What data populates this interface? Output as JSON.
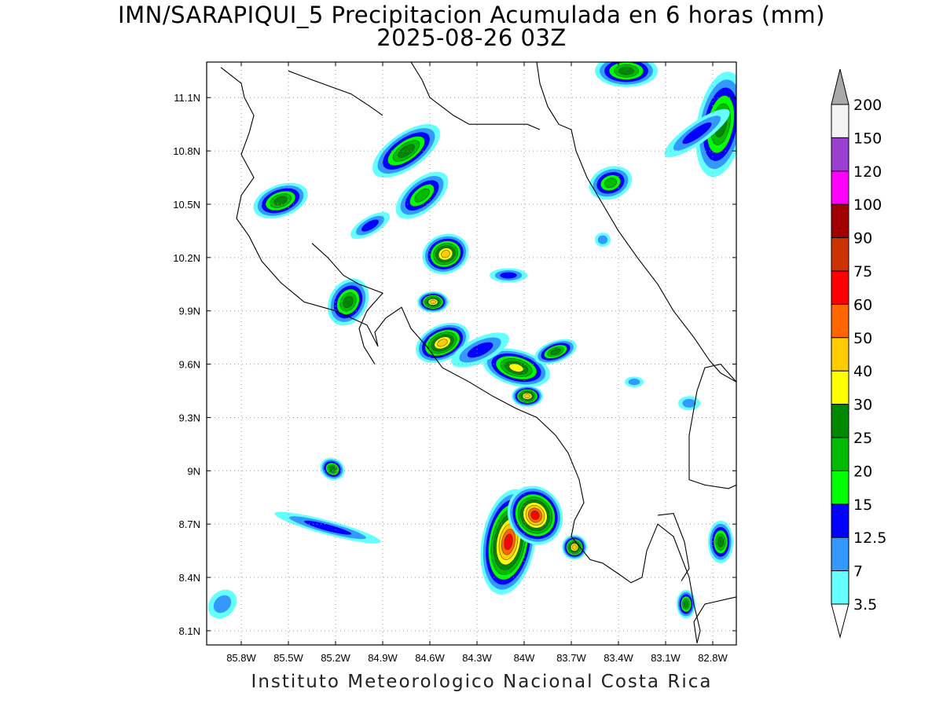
{
  "header": {
    "title_line1": "IMN/SARAPIQUI_5 Precipitacion Acumulada en 6 horas (mm)",
    "title_line2": "2025-08-26 03Z"
  },
  "footer": {
    "credit": "Instituto Meteorologico Nacional Costa Rica"
  },
  "map": {
    "lon_range": [
      -86.02,
      -82.65
    ],
    "lat_range": [
      8.02,
      11.3
    ],
    "lon_ticks": [
      {
        "value": -85.8,
        "label": "85.8W"
      },
      {
        "value": -85.5,
        "label": "85.5W"
      },
      {
        "value": -85.2,
        "label": "85.2W"
      },
      {
        "value": -84.9,
        "label": "84.9W"
      },
      {
        "value": -84.6,
        "label": "84.6W"
      },
      {
        "value": -84.3,
        "label": "84.3W"
      },
      {
        "value": -84.0,
        "label": "84W"
      },
      {
        "value": -83.7,
        "label": "83.7W"
      },
      {
        "value": -83.4,
        "label": "83.4W"
      },
      {
        "value": -83.1,
        "label": "83.1W"
      },
      {
        "value": -82.8,
        "label": "82.8W"
      }
    ],
    "lat_ticks": [
      {
        "value": 8.1,
        "label": "8.1N"
      },
      {
        "value": 8.4,
        "label": "8.4N"
      },
      {
        "value": 8.7,
        "label": "8.7N"
      },
      {
        "value": 9.0,
        "label": "9N"
      },
      {
        "value": 9.3,
        "label": "9.3N"
      },
      {
        "value": 9.6,
        "label": "9.6N"
      },
      {
        "value": 9.9,
        "label": "9.9N"
      },
      {
        "value": 10.2,
        "label": "10.2N"
      },
      {
        "value": 10.5,
        "label": "10.5N"
      },
      {
        "value": 10.8,
        "label": "10.8N"
      },
      {
        "value": 11.1,
        "label": "11.1N"
      }
    ],
    "grid": true,
    "coastlines": [
      [
        [
          -85.93,
          11.27
        ],
        [
          -85.8,
          11.18
        ],
        [
          -85.78,
          11.1
        ],
        [
          -85.72,
          11.0
        ],
        [
          -85.75,
          10.9
        ],
        [
          -85.8,
          10.78
        ],
        [
          -85.72,
          10.65
        ],
        [
          -85.8,
          10.55
        ],
        [
          -85.83,
          10.42
        ],
        [
          -85.75,
          10.32
        ],
        [
          -85.67,
          10.18
        ],
        [
          -85.55,
          10.06
        ],
        [
          -85.4,
          9.95
        ],
        [
          -85.2,
          9.9
        ],
        [
          -85.0,
          9.82
        ],
        [
          -84.93,
          9.7
        ],
        [
          -84.95,
          9.78
        ],
        [
          -84.88,
          9.86
        ],
        [
          -84.78,
          9.92
        ],
        [
          -84.72,
          9.8
        ],
        [
          -84.62,
          9.7
        ],
        [
          -84.52,
          9.58
        ],
        [
          -84.35,
          9.5
        ],
        [
          -84.2,
          9.42
        ],
        [
          -84.05,
          9.35
        ],
        [
          -83.92,
          9.3
        ],
        [
          -83.8,
          9.2
        ],
        [
          -83.72,
          9.1
        ],
        [
          -83.65,
          8.95
        ],
        [
          -83.62,
          8.82
        ],
        [
          -83.68,
          8.72
        ],
        [
          -83.7,
          8.63
        ],
        [
          -83.58,
          8.5
        ],
        [
          -83.5,
          8.48
        ],
        [
          -83.4,
          8.42
        ],
        [
          -83.32,
          8.37
        ],
        [
          -83.25,
          8.4
        ],
        [
          -83.22,
          8.55
        ],
        [
          -83.15,
          8.7
        ],
        [
          -83.05,
          8.63
        ],
        [
          -82.95,
          8.4
        ],
        [
          -82.92,
          8.25
        ],
        [
          -82.88,
          8.1
        ],
        [
          -82.9,
          8.03
        ]
      ],
      [
        [
          -82.9,
          8.03
        ],
        [
          -82.92,
          8.15
        ],
        [
          -82.85,
          8.25
        ],
        [
          -82.7,
          8.28
        ],
        [
          -82.65,
          8.29
        ]
      ],
      [
        [
          -84.72,
          11.3
        ],
        [
          -84.65,
          11.2
        ],
        [
          -84.6,
          11.1
        ],
        [
          -84.45,
          11.0
        ],
        [
          -84.35,
          10.95
        ],
        [
          -84.15,
          10.95
        ],
        [
          -83.98,
          10.95
        ],
        [
          -83.9,
          10.92
        ]
      ],
      [
        [
          -83.92,
          11.3
        ],
        [
          -83.9,
          11.18
        ],
        [
          -83.85,
          11.05
        ],
        [
          -83.78,
          10.95
        ],
        [
          -83.7,
          10.92
        ],
        [
          -83.67,
          10.8
        ],
        [
          -83.6,
          10.65
        ],
        [
          -83.5,
          10.5
        ],
        [
          -83.4,
          10.35
        ],
        [
          -83.28,
          10.2
        ],
        [
          -83.15,
          10.05
        ],
        [
          -83.05,
          9.9
        ],
        [
          -82.92,
          9.75
        ],
        [
          -82.82,
          9.62
        ],
        [
          -82.75,
          9.55
        ],
        [
          -82.65,
          9.5
        ]
      ],
      [
        [
          -82.65,
          9.5
        ],
        [
          -82.75,
          9.6
        ],
        [
          -82.85,
          9.58
        ],
        [
          -82.9,
          9.45
        ],
        [
          -82.95,
          9.2
        ],
        [
          -82.95,
          8.95
        ],
        [
          -82.85,
          8.92
        ],
        [
          -82.7,
          8.9
        ],
        [
          -82.65,
          8.92
        ]
      ],
      [
        [
          -85.35,
          10.28
        ],
        [
          -85.25,
          10.2
        ],
        [
          -85.15,
          10.1
        ],
        [
          -85.05,
          10.05
        ],
        [
          -84.9,
          10.0
        ],
        [
          -84.95,
          9.95
        ],
        [
          -85.0,
          9.9
        ],
        [
          -85.05,
          9.8
        ],
        [
          -85.02,
          9.7
        ],
        [
          -84.95,
          9.6
        ]
      ],
      [
        [
          -83.15,
          8.75
        ],
        [
          -83.05,
          8.76
        ],
        [
          -82.98,
          8.6
        ],
        [
          -82.95,
          8.45
        ],
        [
          -83.0,
          8.38
        ]
      ],
      [
        [
          -85.5,
          11.25
        ],
        [
          -85.35,
          11.2
        ],
        [
          -85.1,
          11.12
        ],
        [
          -84.98,
          11.05
        ],
        [
          -84.9,
          11.0
        ]
      ]
    ]
  },
  "colorbar": {
    "top_label": "200",
    "levels": [
      {
        "label": "200",
        "color": "#f4f4f4"
      },
      {
        "label": "150",
        "color": "#9a3fd0"
      },
      {
        "label": "120",
        "color": "#ff00ff"
      },
      {
        "label": "100",
        "color": "#a00000"
      },
      {
        "label": "90",
        "color": "#cc3300"
      },
      {
        "label": "75",
        "color": "#ff0000"
      },
      {
        "label": "60",
        "color": "#ff6600"
      },
      {
        "label": "50",
        "color": "#ffcc00"
      },
      {
        "label": "40",
        "color": "#ffff00"
      },
      {
        "label": "30",
        "color": "#008800"
      },
      {
        "label": "25",
        "color": "#00bb00"
      },
      {
        "label": "20",
        "color": "#00ff00"
      },
      {
        "label": "15",
        "color": "#0000ff"
      },
      {
        "label": "12.5",
        "color": "#3399ff"
      },
      {
        "label": "7",
        "color": "#66ffff"
      },
      {
        "label": "3.5",
        "color": "#ffffff"
      }
    ]
  },
  "precip_cells": [
    {
      "lon": -84.75,
      "lat": 10.8,
      "rx": 0.25,
      "ry": 0.1,
      "angle": -35,
      "max_level": 25
    },
    {
      "lon": -84.65,
      "lat": 10.55,
      "rx": 0.2,
      "ry": 0.09,
      "angle": -40,
      "max_level": 20
    },
    {
      "lon": -84.5,
      "lat": 10.22,
      "rx": 0.15,
      "ry": 0.11,
      "angle": -20,
      "max_level": 40
    },
    {
      "lon": -85.55,
      "lat": 10.52,
      "rx": 0.18,
      "ry": 0.09,
      "angle": -20,
      "max_level": 25
    },
    {
      "lon": -85.12,
      "lat": 9.95,
      "rx": 0.12,
      "ry": 0.14,
      "angle": 30,
      "max_level": 25
    },
    {
      "lon": -84.58,
      "lat": 9.95,
      "rx": 0.1,
      "ry": 0.06,
      "angle": 0,
      "max_level": 40
    },
    {
      "lon": -84.52,
      "lat": 9.72,
      "rx": 0.18,
      "ry": 0.1,
      "angle": -25,
      "max_level": 40
    },
    {
      "lon": -84.05,
      "lat": 9.58,
      "rx": 0.22,
      "ry": 0.1,
      "angle": 15,
      "max_level": 30
    },
    {
      "lon": -83.98,
      "lat": 9.42,
      "rx": 0.1,
      "ry": 0.06,
      "angle": 0,
      "max_level": 40
    },
    {
      "lon": -83.8,
      "lat": 9.67,
      "rx": 0.14,
      "ry": 0.06,
      "angle": -20,
      "max_level": 25
    },
    {
      "lon": -85.22,
      "lat": 9.01,
      "rx": 0.08,
      "ry": 0.06,
      "angle": 30,
      "max_level": 25
    },
    {
      "lon": -84.1,
      "lat": 8.6,
      "rx": 0.17,
      "ry": 0.3,
      "angle": 10,
      "max_level": 60
    },
    {
      "lon": -83.93,
      "lat": 8.75,
      "rx": 0.17,
      "ry": 0.17,
      "angle": -30,
      "max_level": 60
    },
    {
      "lon": -83.68,
      "lat": 8.57,
      "rx": 0.08,
      "ry": 0.07,
      "angle": 0,
      "max_level": 40
    },
    {
      "lon": -82.97,
      "lat": 8.25,
      "rx": 0.06,
      "ry": 0.08,
      "angle": 0,
      "max_level": 25
    },
    {
      "lon": -82.75,
      "lat": 8.6,
      "rx": 0.08,
      "ry": 0.12,
      "angle": 0,
      "max_level": 25
    },
    {
      "lon": -83.35,
      "lat": 11.25,
      "rx": 0.2,
      "ry": 0.09,
      "angle": 0,
      "max_level": 25
    },
    {
      "lon": -82.75,
      "lat": 10.95,
      "rx": 0.15,
      "ry": 0.3,
      "angle": 10,
      "max_level": 25
    },
    {
      "lon": -83.45,
      "lat": 10.62,
      "rx": 0.14,
      "ry": 0.09,
      "angle": -20,
      "max_level": 20
    },
    {
      "lon": -84.1,
      "lat": 10.1,
      "rx": 0.12,
      "ry": 0.04,
      "angle": 0,
      "max_level": 12.5
    },
    {
      "lon": -84.98,
      "lat": 10.38,
      "rx": 0.14,
      "ry": 0.05,
      "angle": -30,
      "max_level": 12.5
    },
    {
      "lon": -85.25,
      "lat": 8.68,
      "rx": 0.35,
      "ry": 0.04,
      "angle": 15,
      "max_level": 12.5
    },
    {
      "lon": -82.9,
      "lat": 10.9,
      "rx": 0.25,
      "ry": 0.06,
      "angle": -35,
      "max_level": 12.5
    },
    {
      "lon": -84.28,
      "lat": 9.68,
      "rx": 0.2,
      "ry": 0.07,
      "angle": -25,
      "max_level": 12.5
    },
    {
      "lon": -85.92,
      "lat": 8.25,
      "rx": 0.08,
      "ry": 0.09,
      "angle": 45,
      "max_level": 7
    },
    {
      "lon": -82.95,
      "lat": 9.38,
      "rx": 0.07,
      "ry": 0.04,
      "angle": 0,
      "max_level": 7
    },
    {
      "lon": -83.3,
      "lat": 9.5,
      "rx": 0.06,
      "ry": 0.03,
      "angle": 0,
      "max_level": 7
    },
    {
      "lon": -83.5,
      "lat": 10.3,
      "rx": 0.05,
      "ry": 0.04,
      "angle": 0,
      "max_level": 7
    }
  ]
}
